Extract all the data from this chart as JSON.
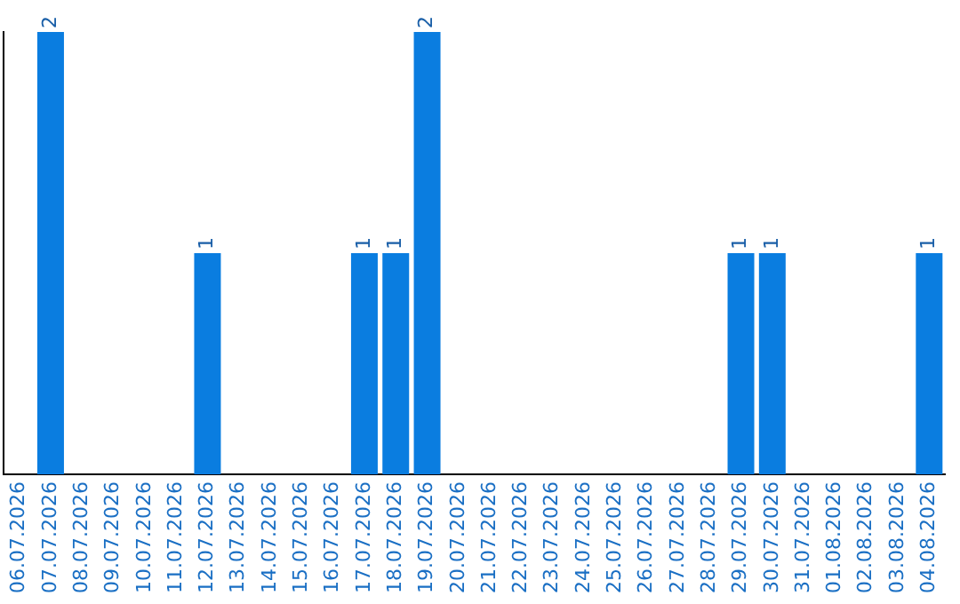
{
  "chart_data": {
    "type": "bar",
    "categories": [
      "06.07.2026",
      "07.07.2026",
      "08.07.2026",
      "09.07.2026",
      "10.07.2026",
      "11.07.2026",
      "12.07.2026",
      "13.07.2026",
      "14.07.2026",
      "15.07.2026",
      "16.07.2026",
      "17.07.2026",
      "18.07.2026",
      "19.07.2026",
      "20.07.2026",
      "21.07.2026",
      "22.07.2026",
      "23.07.2026",
      "24.07.2026",
      "25.07.2026",
      "26.07.2026",
      "27.07.2026",
      "28.07.2026",
      "29.07.2026",
      "30.07.2026",
      "31.07.2026",
      "01.08.2026",
      "02.08.2026",
      "03.08.2026",
      "04.08.2026"
    ],
    "values": [
      0,
      2,
      0,
      0,
      0,
      0,
      1,
      0,
      0,
      0,
      0,
      1,
      1,
      2,
      0,
      0,
      0,
      0,
      0,
      0,
      0,
      0,
      0,
      1,
      1,
      0,
      0,
      0,
      0,
      1
    ],
    "value_labels": [
      null,
      "2",
      null,
      null,
      null,
      null,
      "1",
      null,
      null,
      null,
      null,
      "1",
      "1",
      "2",
      null,
      null,
      null,
      null,
      null,
      null,
      null,
      null,
      null,
      "1",
      "1",
      null,
      null,
      null,
      null,
      "1"
    ],
    "color": "#0a7de0",
    "grid": false,
    "legend": false,
    "tick_labels": "x"
  }
}
